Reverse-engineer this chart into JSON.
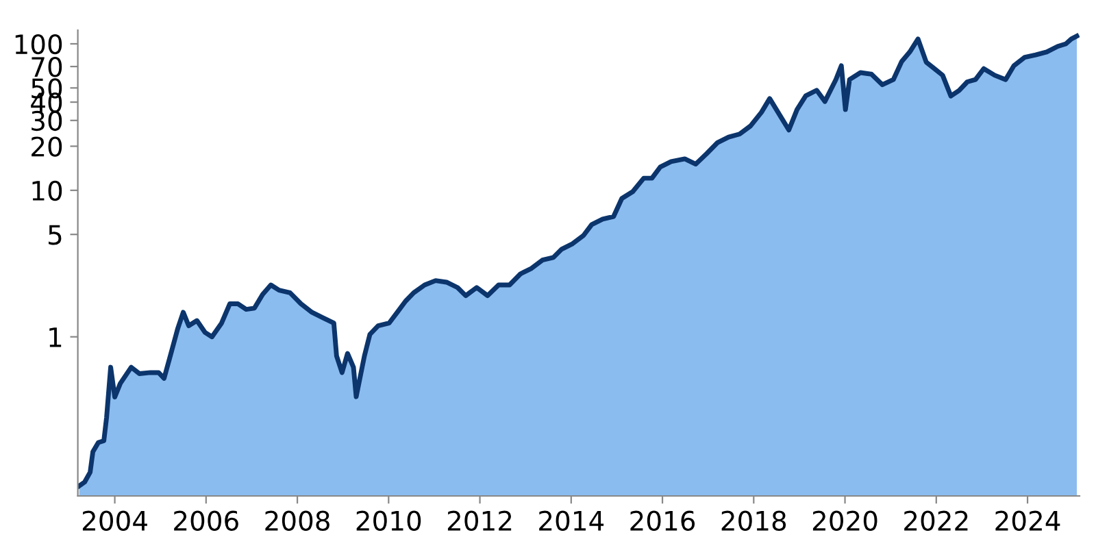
{
  "chart_data": {
    "type": "area",
    "log": "y",
    "grid": false,
    "legend": false,
    "xlim": [
      2003.19,
      2025.14
    ],
    "ylim": [
      0.082,
      124
    ],
    "xticks": [
      2004,
      2006,
      2008,
      2010,
      2012,
      2014,
      2016,
      2018,
      2020,
      2022,
      2024
    ],
    "yticks": [
      1,
      5,
      10,
      20,
      30,
      40,
      50,
      70,
      100
    ],
    "series": [
      {
        "color": "#8bbcf0",
        "x": [
          2003.22,
          2003.34,
          2003.46,
          2003.52,
          2003.64,
          2003.76,
          2003.82,
          2003.91,
          2004.0,
          2004.12,
          2004.36,
          2004.54,
          2004.78,
          2004.96,
          2005.08,
          2005.2,
          2005.38,
          2005.5,
          2005.62,
          2005.8,
          2005.98,
          2006.13,
          2006.34,
          2006.52,
          2006.7,
          2006.88,
          2007.06,
          2007.24,
          2007.42,
          2007.6,
          2007.84,
          2008.08,
          2008.32,
          2008.56,
          2008.8,
          2008.86,
          2008.98,
          2009.1,
          2009.23,
          2009.29,
          2009.47,
          2009.59,
          2009.77,
          2010.01,
          2010.19,
          2010.37,
          2010.55,
          2010.79,
          2011.03,
          2011.27,
          2011.51,
          2011.69,
          2011.93,
          2012.17,
          2012.41,
          2012.65,
          2012.89,
          2013.13,
          2013.37,
          2013.61,
          2013.79,
          2014.03,
          2014.27,
          2014.45,
          2014.69,
          2014.93,
          2015.11,
          2015.35,
          2015.59,
          2015.77,
          2015.95,
          2016.19,
          2016.49,
          2016.73,
          2016.97,
          2017.21,
          2017.45,
          2017.69,
          2017.93,
          2018.17,
          2018.35,
          2018.59,
          2018.77,
          2018.95,
          2019.14,
          2019.38,
          2019.56,
          2019.8,
          2019.92,
          2020.01,
          2020.1,
          2020.34,
          2020.58,
          2020.82,
          2021.06,
          2021.24,
          2021.42,
          2021.6,
          2021.78,
          2021.96,
          2022.14,
          2022.32,
          2022.5,
          2022.68,
          2022.86,
          2023.04,
          2023.28,
          2023.52,
          2023.7,
          2023.94,
          2024.18,
          2024.42,
          2024.66,
          2024.84,
          2024.96,
          2025.08
        ],
        "values": [
          0.096,
          0.102,
          0.119,
          0.164,
          0.19,
          0.195,
          0.281,
          0.62,
          0.388,
          0.48,
          0.62,
          0.56,
          0.57,
          0.57,
          0.52,
          0.71,
          1.14,
          1.47,
          1.19,
          1.29,
          1.07,
          1.0,
          1.24,
          1.68,
          1.68,
          1.54,
          1.57,
          1.95,
          2.26,
          2.08,
          2.0,
          1.68,
          1.47,
          1.35,
          1.24,
          0.74,
          0.57,
          0.77,
          0.62,
          0.39,
          0.74,
          1.04,
          1.19,
          1.24,
          1.47,
          1.75,
          2.0,
          2.26,
          2.42,
          2.36,
          2.17,
          1.91,
          2.17,
          1.91,
          2.26,
          2.26,
          2.69,
          2.93,
          3.34,
          3.48,
          3.96,
          4.32,
          4.92,
          5.84,
          6.36,
          6.63,
          8.8,
          9.8,
          12.1,
          12.1,
          14.4,
          15.7,
          16.4,
          15.1,
          17.8,
          21.2,
          23.1,
          24.2,
          27.5,
          34.1,
          42.3,
          31.9,
          25.8,
          35.6,
          44.2,
          48.2,
          40.4,
          57,
          70.9,
          35.6,
          57,
          63.6,
          62.1,
          52.6,
          57,
          75.5,
          88,
          108,
          75,
          67.7,
          61,
          44,
          48,
          55,
          57,
          67.7,
          61,
          57,
          70.9,
          81,
          84,
          88,
          96,
          100,
          108,
          113
        ]
      }
    ]
  }
}
